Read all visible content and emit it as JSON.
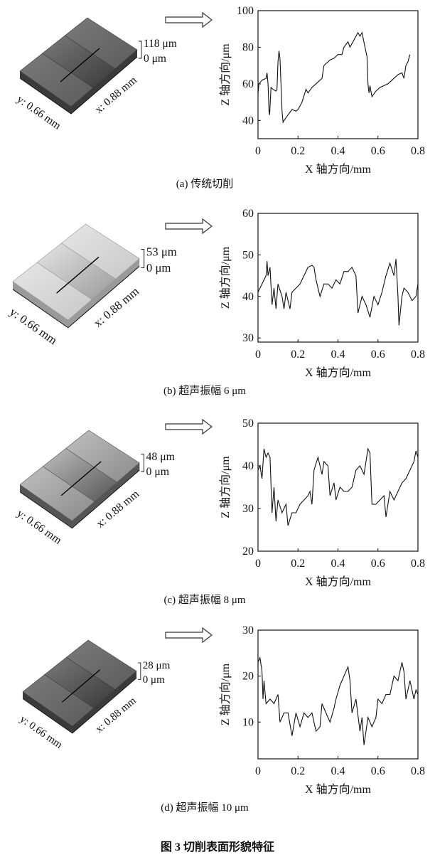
{
  "figure_title": "图 3 切削表面形貌特征",
  "colors": {
    "line": "#111111",
    "arrow": "#333333"
  },
  "chart_data": [
    {
      "type": "line",
      "caption": "(a) 传统切削",
      "xlabel": "X 轴方向/mm",
      "ylabel": "Z 轴方向/μm",
      "xlim": [
        0,
        0.8
      ],
      "ylim": [
        30,
        100
      ],
      "xticks": [
        "0",
        "0.2",
        "0.4",
        "0.6",
        "0.8"
      ],
      "yticks": [
        "40",
        "60",
        "80",
        "100"
      ],
      "surface": {
        "z_max": "118 μm",
        "z_min": "0 μm",
        "y_size": "y: 0.66 mm",
        "x_size": "x: 0.88 mm",
        "shade": "dark"
      },
      "x": [
        0,
        0.005,
        0.02,
        0.04,
        0.045,
        0.05,
        0.055,
        0.058,
        0.065,
        0.075,
        0.09,
        0.095,
        0.1,
        0.105,
        0.11,
        0.12,
        0.125,
        0.13,
        0.15,
        0.17,
        0.19,
        0.2,
        0.22,
        0.24,
        0.25,
        0.27,
        0.3,
        0.32,
        0.33,
        0.36,
        0.38,
        0.4,
        0.42,
        0.43,
        0.45,
        0.46,
        0.48,
        0.5,
        0.51,
        0.52,
        0.535,
        0.545,
        0.55,
        0.555,
        0.56,
        0.57,
        0.59,
        0.61,
        0.63,
        0.65,
        0.67,
        0.7,
        0.72,
        0.73,
        0.74,
        0.75,
        0.76
      ],
      "y": [
        55,
        60,
        62,
        63,
        66,
        60,
        45,
        43,
        58,
        57,
        56,
        57,
        72,
        78,
        74,
        45,
        39,
        40,
        43,
        46,
        45,
        46,
        50,
        57,
        55,
        58,
        61,
        63,
        70,
        73,
        74,
        76,
        76,
        80,
        83,
        80,
        84,
        88,
        86,
        88,
        80,
        75,
        60,
        55,
        59,
        53,
        56,
        58,
        59,
        60,
        62,
        65,
        66,
        63,
        70,
        72,
        76
      ]
    },
    {
      "type": "line",
      "caption": "(b) 超声振幅 6 μm",
      "xlabel": "X 轴方向/mm",
      "ylabel": "Z 轴方向/μm",
      "xlim": [
        0,
        0.8
      ],
      "ylim": [
        29,
        60
      ],
      "xticks": [
        "0",
        "0.2",
        "0.4",
        "0.6",
        "0.8"
      ],
      "yticks": [
        "30",
        "40",
        "50",
        "60"
      ],
      "surface": {
        "z_max": "53 μm",
        "z_min": "0 μm",
        "y_size": "y: 0.66 mm",
        "x_size": "x: 0.88 mm",
        "shade": "light"
      },
      "x": [
        0,
        0.02,
        0.04,
        0.045,
        0.05,
        0.06,
        0.07,
        0.08,
        0.09,
        0.1,
        0.12,
        0.13,
        0.14,
        0.16,
        0.17,
        0.19,
        0.21,
        0.23,
        0.25,
        0.27,
        0.28,
        0.29,
        0.31,
        0.33,
        0.35,
        0.37,
        0.39,
        0.41,
        0.43,
        0.45,
        0.47,
        0.49,
        0.5,
        0.52,
        0.54,
        0.56,
        0.58,
        0.6,
        0.62,
        0.64,
        0.66,
        0.68,
        0.69,
        0.7,
        0.705,
        0.72,
        0.73,
        0.75,
        0.77,
        0.79,
        0.8
      ],
      "y": [
        41,
        43,
        45,
        48.5,
        45,
        47,
        38,
        42,
        37,
        43,
        40,
        37,
        41,
        37,
        41,
        42,
        43,
        45,
        47,
        47.5,
        47,
        44,
        40,
        43,
        43,
        42,
        44,
        43,
        46,
        46,
        47,
        45,
        36,
        40,
        38,
        35,
        40,
        38,
        41,
        45,
        48,
        45,
        49,
        40,
        33,
        40,
        42,
        41,
        39,
        40,
        43
      ]
    },
    {
      "type": "line",
      "caption": "(c) 超声振幅 8 μm",
      "xlabel": "X 轴方向/mm",
      "ylabel": "Z 轴方向/μm",
      "xlim": [
        0,
        0.8
      ],
      "ylim": [
        20,
        50
      ],
      "xticks": [
        "0",
        "0.2",
        "0.4",
        "0.6",
        "0.8"
      ],
      "yticks": [
        "20",
        "30",
        "40",
        "50"
      ],
      "surface": {
        "z_max": "48 μm",
        "z_min": "0 μm",
        "y_size": "y: 0.66 mm",
        "x_size": "x: 0.88 mm",
        "shade": "mid"
      },
      "x": [
        0,
        0.01,
        0.02,
        0.03,
        0.04,
        0.05,
        0.06,
        0.07,
        0.08,
        0.09,
        0.1,
        0.12,
        0.14,
        0.15,
        0.17,
        0.19,
        0.21,
        0.23,
        0.25,
        0.26,
        0.27,
        0.28,
        0.3,
        0.32,
        0.33,
        0.35,
        0.36,
        0.38,
        0.39,
        0.41,
        0.43,
        0.45,
        0.47,
        0.49,
        0.51,
        0.53,
        0.55,
        0.56,
        0.57,
        0.59,
        0.61,
        0.63,
        0.64,
        0.66,
        0.68,
        0.7,
        0.72,
        0.74,
        0.76,
        0.78,
        0.79,
        0.8
      ],
      "y": [
        39,
        40,
        37,
        44,
        42,
        43,
        42,
        29,
        35,
        27,
        32,
        29,
        31,
        26,
        29,
        29,
        31,
        32,
        33,
        34,
        31,
        39,
        42,
        38,
        41,
        40,
        33,
        36,
        32,
        35,
        34,
        34,
        35,
        39,
        40,
        38,
        44,
        43,
        31,
        31,
        32,
        33,
        28,
        34,
        32,
        34,
        36,
        37,
        39,
        41,
        43.5,
        42
      ]
    },
    {
      "type": "line",
      "caption": "(d) 超声振幅 10 μm",
      "xlabel": "X 轴方向/mm",
      "ylabel": "Z 轴方向/μm",
      "xlim": [
        0,
        0.8
      ],
      "ylim": [
        2,
        30
      ],
      "xticks": [
        "0",
        "0.2",
        "0.4",
        "0.6",
        "0.8"
      ],
      "yticks": [
        "10",
        "20",
        "30"
      ],
      "surface": {
        "z_max": "28 μm",
        "z_min": "0 μm",
        "y_size": "y: 0.66 mm",
        "x_size": "x: 0.88 mm",
        "shade": "dark"
      },
      "x": [
        0,
        0.01,
        0.02,
        0.025,
        0.03,
        0.04,
        0.06,
        0.08,
        0.1,
        0.11,
        0.13,
        0.15,
        0.17,
        0.19,
        0.21,
        0.23,
        0.25,
        0.27,
        0.29,
        0.31,
        0.32,
        0.34,
        0.36,
        0.38,
        0.39,
        0.41,
        0.43,
        0.45,
        0.46,
        0.47,
        0.49,
        0.51,
        0.52,
        0.53,
        0.55,
        0.57,
        0.59,
        0.6,
        0.62,
        0.64,
        0.66,
        0.68,
        0.7,
        0.72,
        0.73,
        0.74,
        0.76,
        0.78,
        0.79,
        0.8
      ],
      "y": [
        23,
        24,
        21,
        15,
        19,
        14,
        15,
        14,
        16,
        10,
        12,
        12,
        7,
        12,
        9,
        12,
        11,
        12,
        8,
        9,
        14,
        12,
        10,
        13,
        15,
        18,
        20,
        22,
        19,
        12,
        15,
        8,
        11,
        5,
        11,
        9,
        11,
        15,
        14,
        16,
        16,
        20,
        19,
        23,
        21,
        15,
        19,
        15,
        17,
        16
      ]
    }
  ]
}
